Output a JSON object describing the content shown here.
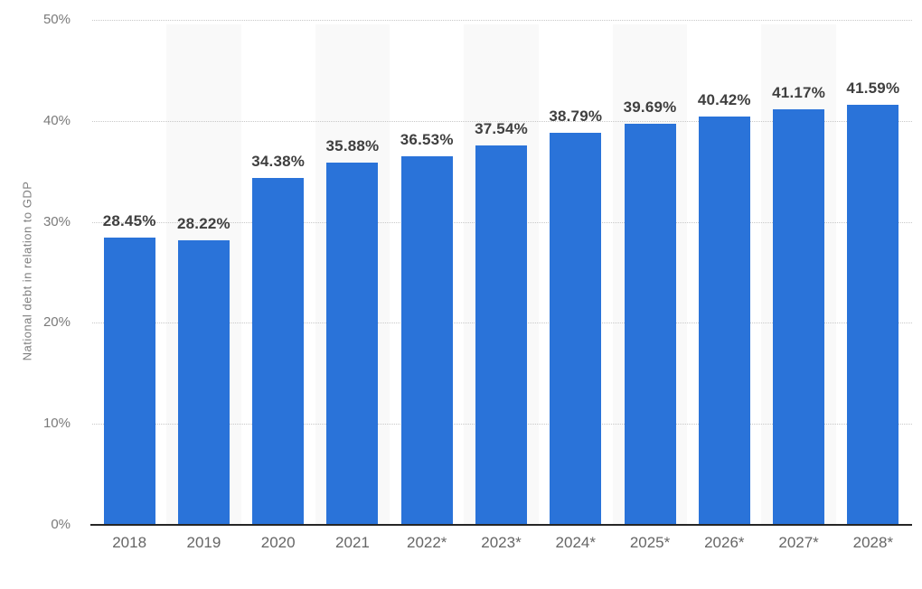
{
  "chart_data": {
    "type": "bar",
    "title": "",
    "ylabel": "National debt in relation to GDP",
    "xlabel": "",
    "categories": [
      "2018",
      "2019",
      "2020",
      "2021",
      "2022*",
      "2023*",
      "2024*",
      "2025*",
      "2026*",
      "2027*",
      "2028*"
    ],
    "values": [
      28.45,
      28.22,
      34.38,
      35.88,
      36.53,
      37.54,
      38.79,
      39.69,
      40.42,
      41.17,
      41.59
    ],
    "data_labels": [
      "28.45%",
      "28.22%",
      "34.38%",
      "35.88%",
      "36.53%",
      "37.54%",
      "38.79%",
      "39.69%",
      "40.42%",
      "41.17%",
      "41.59%"
    ],
    "ylim": [
      0,
      50
    ],
    "yticks": [
      {
        "value": 0,
        "label": "0%"
      },
      {
        "value": 10,
        "label": "10%"
      },
      {
        "value": 20,
        "label": "20%"
      },
      {
        "value": 30,
        "label": "30%"
      },
      {
        "value": 40,
        "label": "40%"
      },
      {
        "value": 50,
        "label": "50%"
      }
    ],
    "grid": "horizontal-dotted",
    "legend_position": "none",
    "colors": {
      "bar": "#2a73d9",
      "column_stripe": "#f9f9f9",
      "gridline": "#c8c8c8",
      "axis_line": "#262626",
      "y_tick_label": "#7a7a7a",
      "x_tick_label": "#666666",
      "value_label": "#3f3f3f",
      "y_axis_title": "#7e7e7e",
      "background": "#ffffff"
    }
  }
}
